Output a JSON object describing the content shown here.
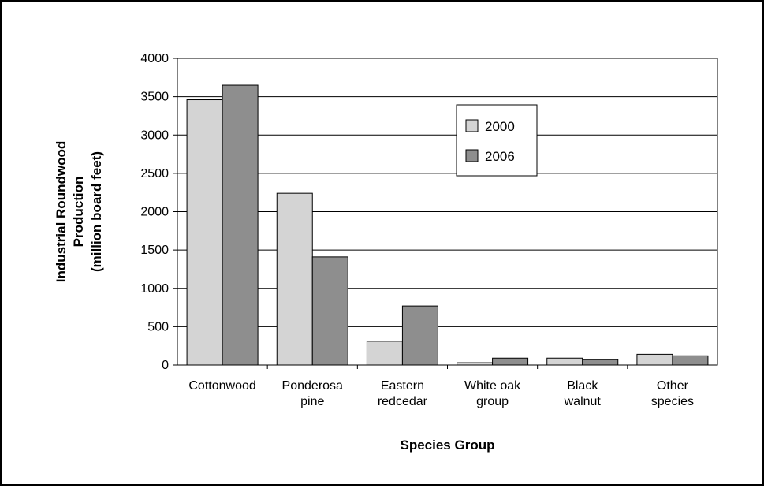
{
  "chart_data": {
    "type": "bar",
    "title": "",
    "xlabel": "Species Group",
    "ylabel_lines": [
      "Industrial Roundwood",
      "Production",
      "(million board feet)"
    ],
    "categories": [
      [
        "Cottonwood"
      ],
      [
        "Ponderosa",
        "pine"
      ],
      [
        "Eastern",
        "redcedar"
      ],
      [
        "White oak",
        "group"
      ],
      [
        "Black",
        "walnut"
      ],
      [
        "Other",
        "species"
      ]
    ],
    "series": [
      {
        "name": "2000",
        "color": "#d4d4d4",
        "values": [
          3460,
          2240,
          310,
          30,
          90,
          140
        ]
      },
      {
        "name": "2006",
        "color": "#8e8e8e",
        "values": [
          3650,
          1410,
          770,
          90,
          70,
          120
        ]
      }
    ],
    "ylim": [
      0,
      4000
    ],
    "yticks": [
      0,
      500,
      1000,
      1500,
      2000,
      2500,
      3000,
      3500,
      4000
    ],
    "grid": true,
    "legend_position": "top-right"
  }
}
